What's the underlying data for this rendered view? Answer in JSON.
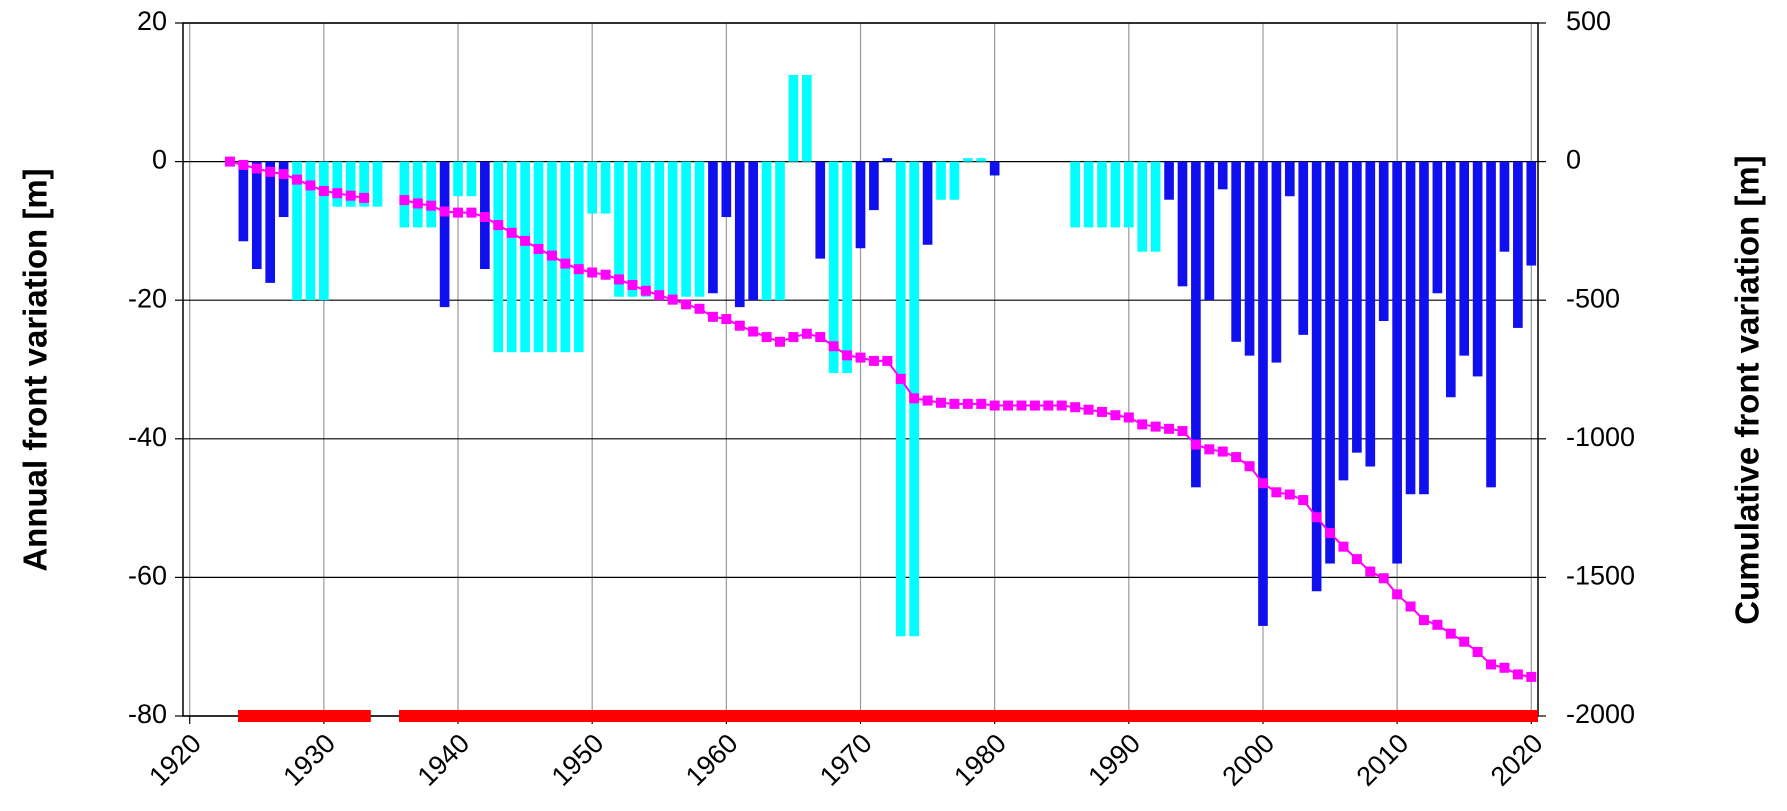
{
  "chart_data": {
    "type": "bar_line",
    "ylabel": "Annual front variation [m]",
    "y2label": "Cumulative front variation [m]",
    "x": [
      1923,
      1924,
      1925,
      1926,
      1927,
      1928,
      1929,
      1930,
      1931,
      1932,
      1933,
      1934,
      1935,
      1936,
      1937,
      1938,
      1939,
      1940,
      1941,
      1942,
      1943,
      1944,
      1945,
      1946,
      1947,
      1948,
      1949,
      1950,
      1951,
      1952,
      1953,
      1954,
      1955,
      1956,
      1957,
      1958,
      1959,
      1960,
      1961,
      1962,
      1963,
      1964,
      1965,
      1966,
      1967,
      1968,
      1969,
      1970,
      1971,
      1972,
      1973,
      1974,
      1975,
      1976,
      1977,
      1978,
      1979,
      1980,
      1981,
      1982,
      1983,
      1984,
      1985,
      1986,
      1987,
      1988,
      1989,
      1990,
      1991,
      1992,
      1993,
      1994,
      1995,
      1996,
      1997,
      1998,
      1999,
      2000,
      2001,
      2002,
      2003,
      2004,
      2005,
      2006,
      2007,
      2008,
      2009,
      2010,
      2011,
      2012,
      2013,
      2014,
      2015,
      2016,
      2017,
      2018,
      2019,
      2020
    ],
    "series": [
      {
        "type": "bar",
        "color": "#1010ee",
        "values": [
          null,
          -11.5,
          -15.5,
          -17.5,
          -8,
          null,
          null,
          null,
          null,
          null,
          null,
          null,
          null,
          null,
          null,
          null,
          -21,
          null,
          null,
          -15.5,
          null,
          null,
          null,
          null,
          null,
          null,
          null,
          null,
          null,
          null,
          null,
          null,
          null,
          null,
          null,
          null,
          -19,
          -8,
          -21,
          -20,
          null,
          null,
          null,
          null,
          -14,
          null,
          null,
          -12.5,
          -7,
          0.5,
          null,
          null,
          -12,
          null,
          null,
          null,
          null,
          -2,
          null,
          null,
          null,
          null,
          null,
          null,
          null,
          null,
          null,
          null,
          null,
          null,
          -5.5,
          -18,
          -47,
          -20,
          -4,
          -26,
          -28,
          -67,
          -29,
          -5,
          -25,
          -62,
          -58,
          -46,
          -42,
          -44,
          -23,
          -58,
          -48,
          -48,
          -19,
          -34,
          -28,
          -31,
          -47,
          -13,
          -24,
          -15
        ]
      },
      {
        "type": "bar",
        "color": "#00ffff",
        "values": [
          null,
          null,
          null,
          null,
          null,
          -20,
          -20,
          -20,
          -6.5,
          -6.5,
          -6.5,
          -6.5,
          null,
          -9.5,
          -9.5,
          -9.5,
          null,
          -5,
          -5,
          null,
          -27.5,
          -27.5,
          -27.5,
          -27.5,
          -27.5,
          -27.5,
          -27.5,
          -7.5,
          -7.5,
          -19.5,
          -19.5,
          -19.5,
          -19.5,
          -19.5,
          -19.5,
          -19.5,
          null,
          null,
          null,
          null,
          -20,
          -20,
          12.5,
          12.5,
          null,
          -30.5,
          -30.5,
          null,
          null,
          null,
          -68.5,
          -68.5,
          null,
          -5.5,
          -5.5,
          0.5,
          0.5,
          null,
          null,
          null,
          null,
          null,
          null,
          -9.5,
          -9.5,
          -9.5,
          -9.5,
          -9.5,
          -13,
          -13,
          null,
          null,
          null,
          null,
          null,
          null,
          null,
          null,
          null,
          null,
          null,
          null,
          null,
          null,
          null,
          null,
          null,
          null,
          null,
          null,
          null,
          null,
          null,
          null,
          null,
          null,
          null,
          null
        ]
      },
      {
        "type": "line",
        "axis": "y2",
        "color": "#ff00ff",
        "values": [
          0,
          -12,
          -25,
          -37,
          -45,
          -65,
          -86,
          -106,
          -114,
          -123,
          -131,
          null,
          null,
          -139,
          -151,
          -159,
          -180,
          -184,
          -184,
          -200,
          -229,
          -257,
          -286,
          -315,
          -339,
          -368,
          -388,
          -400,
          -408,
          -425,
          -445,
          -466,
          -482,
          -498,
          -515,
          -531,
          -560,
          -568,
          -592,
          -613,
          -633,
          -650,
          -633,
          -621,
          -633,
          -666,
          -699,
          -707,
          -719,
          -719,
          -784,
          -854,
          -862,
          -870,
          -874,
          -874,
          -874,
          -880,
          -880,
          -880,
          -880,
          -880,
          -880,
          -886,
          -895,
          -903,
          -915,
          -923,
          -948,
          -956,
          -964,
          -972,
          -1021,
          -1038,
          -1046,
          -1066,
          -1099,
          -1160,
          -1193,
          -1201,
          -1221,
          -1283,
          -1340,
          -1389,
          -1434,
          -1479,
          -1503,
          -1561,
          -1605,
          -1654,
          -1671,
          -1703,
          -1732,
          -1769,
          -1814,
          -1826,
          -1850,
          -1859
        ]
      }
    ],
    "observation_periods": [
      [
        1923.6,
        1933.5
      ],
      [
        1935.6,
        2020.5
      ]
    ],
    "observation_color": "#ff0000",
    "xlim": [
      1919.5,
      2020.5
    ],
    "xticks": [
      1920,
      1930,
      1940,
      1950,
      1960,
      1970,
      1980,
      1990,
      2000,
      2010,
      2020
    ],
    "ylim": [
      -80,
      20
    ],
    "yticks": [
      -80,
      -60,
      -40,
      -20,
      0,
      20
    ],
    "y2lim": [
      -2000,
      500
    ],
    "y2ticks": [
      -2000,
      -1500,
      -1000,
      -500,
      0,
      500
    ],
    "grid": true
  }
}
